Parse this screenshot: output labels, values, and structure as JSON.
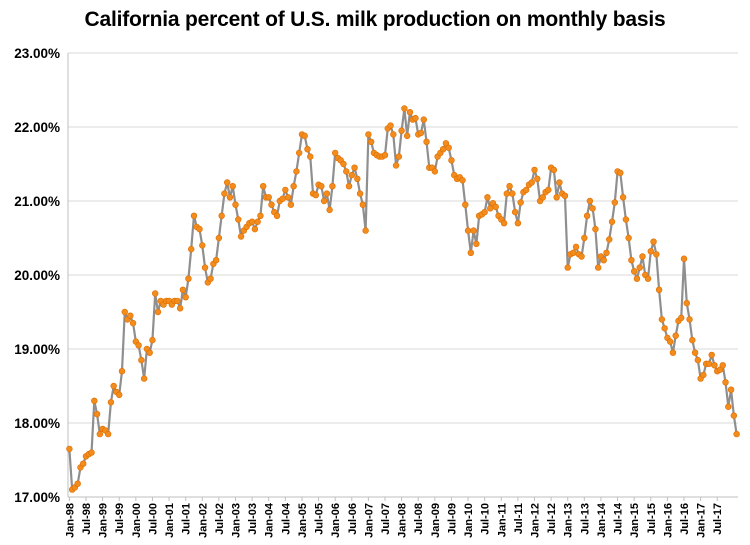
{
  "chart_data": {
    "type": "line",
    "title": "California percent of U.S. milk production on monthly basis",
    "xlabel": "",
    "ylabel": "",
    "ylim": [
      17,
      23
    ],
    "y_ticks": [
      "17.00%",
      "18.00%",
      "19.00%",
      "20.00%",
      "21.00%",
      "22.00%",
      "23.00%"
    ],
    "x_ticks": [
      "Jan-98",
      "Jul-98",
      "Jan-99",
      "Jul-99",
      "Jan-00",
      "Jul-00",
      "Jan-01",
      "Jul-01",
      "Jan-02",
      "Jul-02",
      "Jan-03",
      "Jul-03",
      "Jan-04",
      "Jul-04",
      "Jan-05",
      "Jul-05",
      "Jan-06",
      "Jul-06",
      "Jan-07",
      "Jul-07",
      "Jan-08",
      "Jul-08",
      "Jan-09",
      "Jul-09",
      "Jan-10",
      "Jul-10",
      "Jan-11",
      "Jul-11",
      "Jan-12",
      "Jul-12",
      "Jan-13",
      "Jul-13",
      "Jan-14",
      "Jul-14",
      "Jan-15",
      "Jul-15",
      "Jan-16",
      "Jul-16",
      "Jan-17",
      "Jul-17"
    ],
    "x_start": "Jan-98",
    "grid": "horizontal",
    "legend": "none",
    "colors": {
      "line": "#8f8f8f",
      "marker": "#f28c1c",
      "marker_edge": "#e06d00",
      "grid": "#d9d9d9"
    },
    "series": [
      {
        "values": [
          17.65,
          17.1,
          17.13,
          17.18,
          17.4,
          17.45,
          17.55,
          17.58,
          17.6,
          18.3,
          18.12,
          17.85,
          17.92,
          17.9,
          17.85,
          18.28,
          18.5,
          18.42,
          18.38,
          18.7,
          19.5,
          19.4,
          19.45,
          19.35,
          19.1,
          19.05,
          18.85,
          18.6,
          19.0,
          18.95,
          19.12,
          19.75,
          19.5,
          19.65,
          19.6,
          19.65,
          19.65,
          19.6,
          19.65,
          19.65,
          19.55,
          19.8,
          19.7,
          19.95,
          20.35,
          20.8,
          20.65,
          20.62,
          20.4,
          20.1,
          19.9,
          19.95,
          20.15,
          20.2,
          20.5,
          20.8,
          21.1,
          21.25,
          21.05,
          21.2,
          20.95,
          20.75,
          20.52,
          20.6,
          20.65,
          20.7,
          20.72,
          20.62,
          20.72,
          20.8,
          21.2,
          21.05,
          21.05,
          20.95,
          20.85,
          20.8,
          21.0,
          21.03,
          21.15,
          21.05,
          20.95,
          21.2,
          21.4,
          21.65,
          21.9,
          21.88,
          21.7,
          21.6,
          21.1,
          21.08,
          21.22,
          21.2,
          21.0,
          21.1,
          20.88,
          21.2,
          21.65,
          21.58,
          21.55,
          21.5,
          21.4,
          21.2,
          21.35,
          21.45,
          21.3,
          21.1,
          20.95,
          20.6,
          21.9,
          21.8,
          21.65,
          21.62,
          21.6,
          21.6,
          21.62,
          21.98,
          22.02,
          21.9,
          21.48,
          21.6,
          21.95,
          22.25,
          21.88,
          22.2,
          22.1,
          22.12,
          21.9,
          21.92,
          22.1,
          21.8,
          21.45,
          21.45,
          21.4,
          21.6,
          21.65,
          21.7,
          21.78,
          21.72,
          21.55,
          21.35,
          21.3,
          21.32,
          21.28,
          20.95,
          20.6,
          20.3,
          20.6,
          20.42,
          20.8,
          20.82,
          20.85,
          21.05,
          20.9,
          20.97,
          20.92,
          20.8,
          20.75,
          20.7,
          21.1,
          21.2,
          21.1,
          20.85,
          20.7,
          20.98,
          21.12,
          21.15,
          21.22,
          21.25,
          21.42,
          21.3,
          21.0,
          21.05,
          21.12,
          21.15,
          21.45,
          21.42,
          21.05,
          21.25,
          21.1,
          21.07,
          20.1,
          20.28,
          20.3,
          20.38,
          20.28,
          20.25,
          20.5,
          20.8,
          21.0,
          20.9,
          20.62,
          20.1,
          20.25,
          20.2,
          20.3,
          20.48,
          20.72,
          20.98,
          21.4,
          21.38,
          21.05,
          20.75,
          20.5,
          20.2,
          20.05,
          19.95,
          20.1,
          20.25,
          20.0,
          19.95,
          20.32,
          20.45,
          20.28,
          19.8,
          19.4,
          19.28,
          19.15,
          19.1,
          18.95,
          19.18,
          19.38,
          19.42,
          20.22,
          19.62,
          19.4,
          19.12,
          18.95,
          18.85,
          18.6,
          18.65,
          18.8,
          18.8,
          18.92,
          18.78,
          18.7,
          18.72,
          18.78,
          18.55,
          18.22,
          18.45,
          18.1,
          17.85
        ]
      }
    ]
  }
}
